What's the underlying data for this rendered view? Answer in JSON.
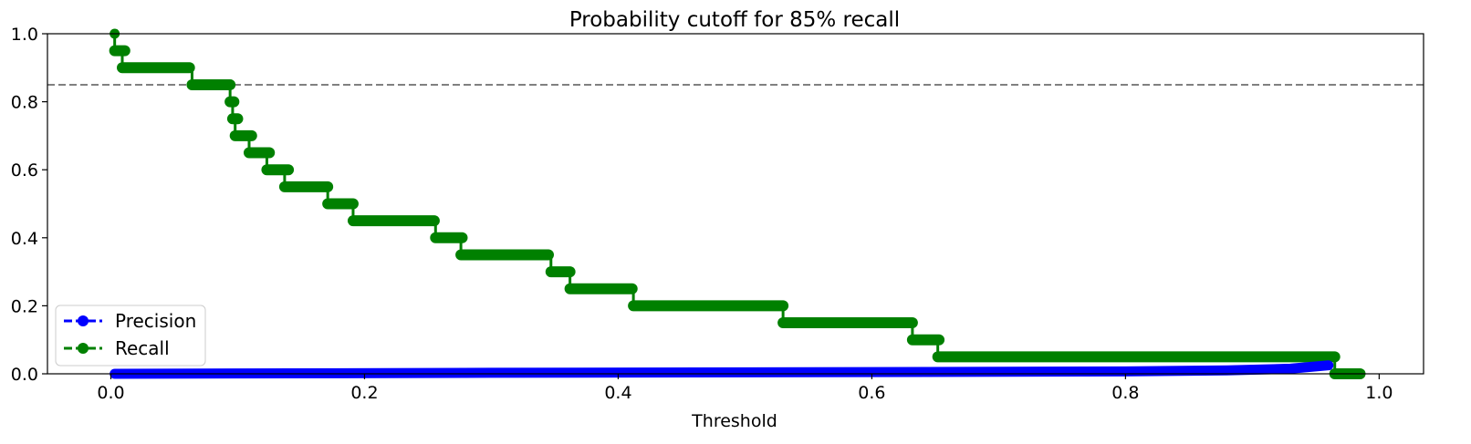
{
  "chart_data": {
    "type": "line",
    "title": "Probability cutoff for 85% recall",
    "xlabel": "Threshold",
    "ylabel": "",
    "xlim": [
      -0.05,
      1.035
    ],
    "ylim": [
      0.0,
      1.0
    ],
    "xticks": [
      0.0,
      0.2,
      0.4,
      0.6,
      0.8,
      1.0
    ],
    "xtick_labels": [
      "0.0",
      "0.2",
      "0.4",
      "0.6",
      "0.8",
      "1.0"
    ],
    "yticks": [
      0.0,
      0.2,
      0.4,
      0.6,
      0.8,
      1.0
    ],
    "ytick_labels": [
      "0.0",
      "0.2",
      "0.4",
      "0.6",
      "0.8",
      "1.0"
    ],
    "grid": false,
    "legend_position": "lower-left",
    "reference_line": {
      "y": 0.85,
      "style": "dashed",
      "color": "#808080"
    },
    "series": [
      {
        "name": "Precision",
        "color": "#0000ff",
        "line_style": "dashed",
        "marker": "circle",
        "segments": [
          [
            0.003,
            0.0
          ],
          [
            0.3,
            0.003
          ],
          [
            0.6,
            0.005
          ],
          [
            0.8,
            0.007
          ],
          [
            0.88,
            0.01
          ],
          [
            0.93,
            0.015
          ],
          [
            0.96,
            0.025
          ]
        ]
      },
      {
        "name": "Recall",
        "color": "#008000",
        "line_style": "dashed",
        "marker": "circle",
        "segments": [
          [
            0.003,
            0.003,
            1.0
          ],
          [
            0.003,
            0.011,
            0.95
          ],
          [
            0.009,
            0.062,
            0.9
          ],
          [
            0.064,
            0.094,
            0.85
          ],
          [
            0.094,
            0.097,
            0.8
          ],
          [
            0.096,
            0.1,
            0.75
          ],
          [
            0.098,
            0.111,
            0.7
          ],
          [
            0.109,
            0.125,
            0.65
          ],
          [
            0.123,
            0.14,
            0.6
          ],
          [
            0.137,
            0.171,
            0.55
          ],
          [
            0.171,
            0.191,
            0.5
          ],
          [
            0.191,
            0.255,
            0.45
          ],
          [
            0.256,
            0.277,
            0.4
          ],
          [
            0.276,
            0.345,
            0.35
          ],
          [
            0.347,
            0.362,
            0.3
          ],
          [
            0.362,
            0.411,
            0.25
          ],
          [
            0.412,
            0.53,
            0.2
          ],
          [
            0.53,
            0.632,
            0.15
          ],
          [
            0.632,
            0.653,
            0.1
          ],
          [
            0.652,
            0.965,
            0.05
          ],
          [
            0.965,
            0.985,
            0.0
          ]
        ]
      }
    ]
  }
}
